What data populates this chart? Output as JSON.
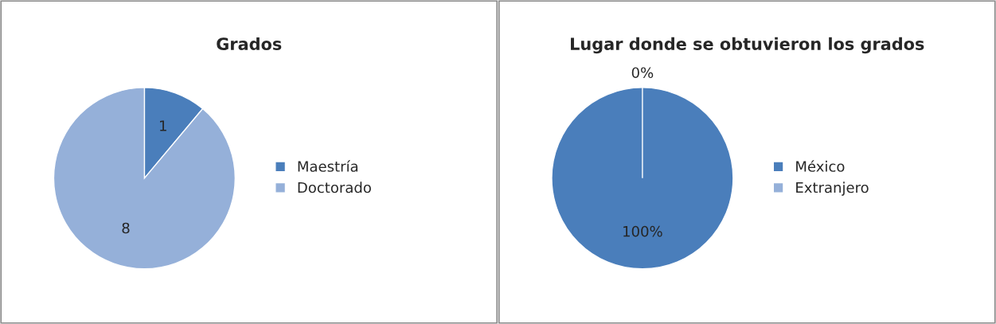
{
  "chart_data": [
    {
      "type": "pie",
      "title": "Grados",
      "categories": [
        "Maestría",
        "Doctorado"
      ],
      "values": [
        1,
        8
      ],
      "colors": [
        "#4a7ebb",
        "#95b0d9"
      ],
      "data_labels": true,
      "legend": "right"
    },
    {
      "type": "pie",
      "title": "Lugar donde se obtuvieron los grados",
      "categories": [
        "México",
        "Extranjero"
      ],
      "values": [
        100,
        0
      ],
      "colors": [
        "#4a7ebb",
        "#95b0d9"
      ],
      "value_labels": [
        "100%",
        "0%"
      ],
      "legend": "right"
    }
  ]
}
